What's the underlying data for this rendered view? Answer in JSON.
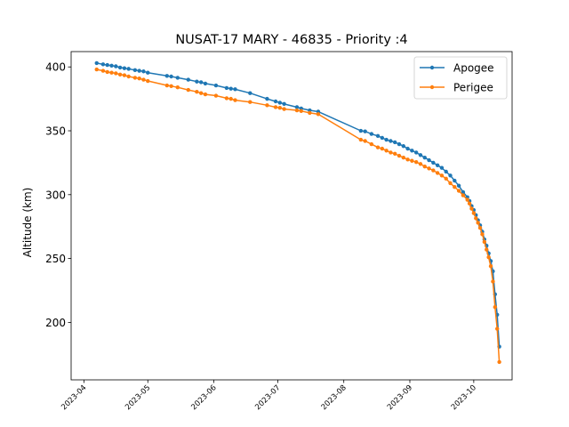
{
  "chart_data": {
    "type": "line",
    "title": "NUSAT-17 MARY - 46835 - Priority :4",
    "xlabel": "",
    "ylabel": "Altitude (km)",
    "x_ticks": [
      "2023-04",
      "2023-05",
      "2023-06",
      "2023-07",
      "2023-08",
      "2023-09",
      "2023-10"
    ],
    "y_ticks": [
      200,
      250,
      300,
      350,
      400
    ],
    "xlim": [
      "2023-03-26",
      "2023-10-19"
    ],
    "ylim": [
      155,
      412
    ],
    "grid": false,
    "legend_position": "top-right",
    "colors": {
      "Apogee": "#1f77b4",
      "Perigee": "#ff7f0e"
    },
    "series": [
      {
        "name": "Apogee",
        "points": [
          [
            "2023-04-07",
            403
          ],
          [
            "2023-04-10",
            402
          ],
          [
            "2023-04-12",
            401.5
          ],
          [
            "2023-04-14",
            401
          ],
          [
            "2023-04-16",
            400.5
          ],
          [
            "2023-04-18",
            399.5
          ],
          [
            "2023-04-20",
            399
          ],
          [
            "2023-04-22",
            398.5
          ],
          [
            "2023-04-25",
            397.5
          ],
          [
            "2023-04-27",
            397
          ],
          [
            "2023-04-29",
            396.5
          ],
          [
            "2023-05-01",
            395.5
          ],
          [
            "2023-05-10",
            393
          ],
          [
            "2023-05-12",
            392.5
          ],
          [
            "2023-05-15",
            391.5
          ],
          [
            "2023-05-20",
            390
          ],
          [
            "2023-05-24",
            388.5
          ],
          [
            "2023-05-26",
            388
          ],
          [
            "2023-05-28",
            387
          ],
          [
            "2023-06-02",
            385.5
          ],
          [
            "2023-06-07",
            383.5
          ],
          [
            "2023-06-09",
            383
          ],
          [
            "2023-06-11",
            382.5
          ],
          [
            "2023-06-18",
            379.5
          ],
          [
            "2023-06-26",
            375
          ],
          [
            "2023-06-30",
            373
          ],
          [
            "2023-07-02",
            372
          ],
          [
            "2023-07-04",
            371
          ],
          [
            "2023-07-10",
            368.5
          ],
          [
            "2023-07-12",
            367.5
          ],
          [
            "2023-07-16",
            366
          ],
          [
            "2023-07-20",
            365
          ],
          [
            "2023-08-09",
            350
          ],
          [
            "2023-08-11",
            349.5
          ],
          [
            "2023-08-14",
            347.5
          ],
          [
            "2023-08-17",
            346
          ],
          [
            "2023-08-19",
            344.5
          ],
          [
            "2023-08-21",
            343
          ],
          [
            "2023-08-23",
            342
          ],
          [
            "2023-08-25",
            341
          ],
          [
            "2023-08-27",
            339.5
          ],
          [
            "2023-08-29",
            338
          ],
          [
            "2023-08-31",
            336
          ],
          [
            "2023-09-02",
            334.5
          ],
          [
            "2023-09-04",
            333
          ],
          [
            "2023-09-06",
            331
          ],
          [
            "2023-09-08",
            329
          ],
          [
            "2023-09-10",
            327
          ],
          [
            "2023-09-12",
            325
          ],
          [
            "2023-09-14",
            323
          ],
          [
            "2023-09-16",
            321
          ],
          [
            "2023-09-18",
            318
          ],
          [
            "2023-09-20",
            315
          ],
          [
            "2023-09-22",
            311
          ],
          [
            "2023-09-24",
            307
          ],
          [
            "2023-09-26",
            302
          ],
          [
            "2023-09-28",
            298
          ],
          [
            "2023-09-29",
            295
          ],
          [
            "2023-09-30",
            291
          ],
          [
            "2023-10-01",
            288
          ],
          [
            "2023-10-02",
            284
          ],
          [
            "2023-10-03",
            280
          ],
          [
            "2023-10-04",
            276
          ],
          [
            "2023-10-05",
            271
          ],
          [
            "2023-10-06",
            265
          ],
          [
            "2023-10-07",
            260
          ],
          [
            "2023-10-08",
            254
          ],
          [
            "2023-10-09",
            248
          ],
          [
            "2023-10-10",
            240
          ],
          [
            "2023-10-11",
            222
          ],
          [
            "2023-10-12",
            206
          ],
          [
            "2023-10-13",
            181
          ]
        ]
      },
      {
        "name": "Perigee",
        "points": [
          [
            "2023-04-07",
            398
          ],
          [
            "2023-04-10",
            397
          ],
          [
            "2023-04-12",
            396
          ],
          [
            "2023-04-14",
            395.5
          ],
          [
            "2023-04-16",
            395
          ],
          [
            "2023-04-18",
            394
          ],
          [
            "2023-04-20",
            393.5
          ],
          [
            "2023-04-22",
            392.5
          ],
          [
            "2023-04-25",
            391.5
          ],
          [
            "2023-04-27",
            391
          ],
          [
            "2023-04-29",
            390
          ],
          [
            "2023-05-01",
            389
          ],
          [
            "2023-05-10",
            385.5
          ],
          [
            "2023-05-12",
            385
          ],
          [
            "2023-05-15",
            384
          ],
          [
            "2023-05-20",
            382
          ],
          [
            "2023-05-24",
            380.5
          ],
          [
            "2023-05-26",
            379.5
          ],
          [
            "2023-05-28",
            378.5
          ],
          [
            "2023-06-02",
            377.5
          ],
          [
            "2023-06-07",
            375.5
          ],
          [
            "2023-06-09",
            375
          ],
          [
            "2023-06-11",
            374
          ],
          [
            "2023-06-18",
            372.5
          ],
          [
            "2023-06-26",
            370
          ],
          [
            "2023-06-30",
            368.5
          ],
          [
            "2023-07-02",
            368
          ],
          [
            "2023-07-04",
            367
          ],
          [
            "2023-07-10",
            366
          ],
          [
            "2023-07-12",
            365.5
          ],
          [
            "2023-07-16",
            364
          ],
          [
            "2023-07-20",
            363
          ],
          [
            "2023-08-09",
            343
          ],
          [
            "2023-08-11",
            342
          ],
          [
            "2023-08-14",
            339.5
          ],
          [
            "2023-08-17",
            337
          ],
          [
            "2023-08-19",
            336
          ],
          [
            "2023-08-21",
            334.5
          ],
          [
            "2023-08-23",
            333
          ],
          [
            "2023-08-25",
            332
          ],
          [
            "2023-08-27",
            330.5
          ],
          [
            "2023-08-29",
            329
          ],
          [
            "2023-08-31",
            327.5
          ],
          [
            "2023-09-02",
            326.5
          ],
          [
            "2023-09-04",
            325.5
          ],
          [
            "2023-09-06",
            324
          ],
          [
            "2023-09-08",
            322
          ],
          [
            "2023-09-10",
            320.5
          ],
          [
            "2023-09-12",
            319
          ],
          [
            "2023-09-14",
            317
          ],
          [
            "2023-09-16",
            315
          ],
          [
            "2023-09-18",
            312.5
          ],
          [
            "2023-09-20",
            309
          ],
          [
            "2023-09-22",
            306
          ],
          [
            "2023-09-24",
            303
          ],
          [
            "2023-09-26",
            299.5
          ],
          [
            "2023-09-28",
            296
          ],
          [
            "2023-09-29",
            293
          ],
          [
            "2023-09-30",
            289
          ],
          [
            "2023-10-01",
            285.5
          ],
          [
            "2023-10-02",
            281.5
          ],
          [
            "2023-10-03",
            278
          ],
          [
            "2023-10-04",
            274
          ],
          [
            "2023-10-05",
            269
          ],
          [
            "2023-10-06",
            263
          ],
          [
            "2023-10-07",
            257
          ],
          [
            "2023-10-08",
            251
          ],
          [
            "2023-10-09",
            244
          ],
          [
            "2023-10-10",
            232
          ],
          [
            "2023-10-11",
            212
          ],
          [
            "2023-10-12",
            195
          ],
          [
            "2023-10-13",
            169
          ]
        ]
      }
    ]
  }
}
